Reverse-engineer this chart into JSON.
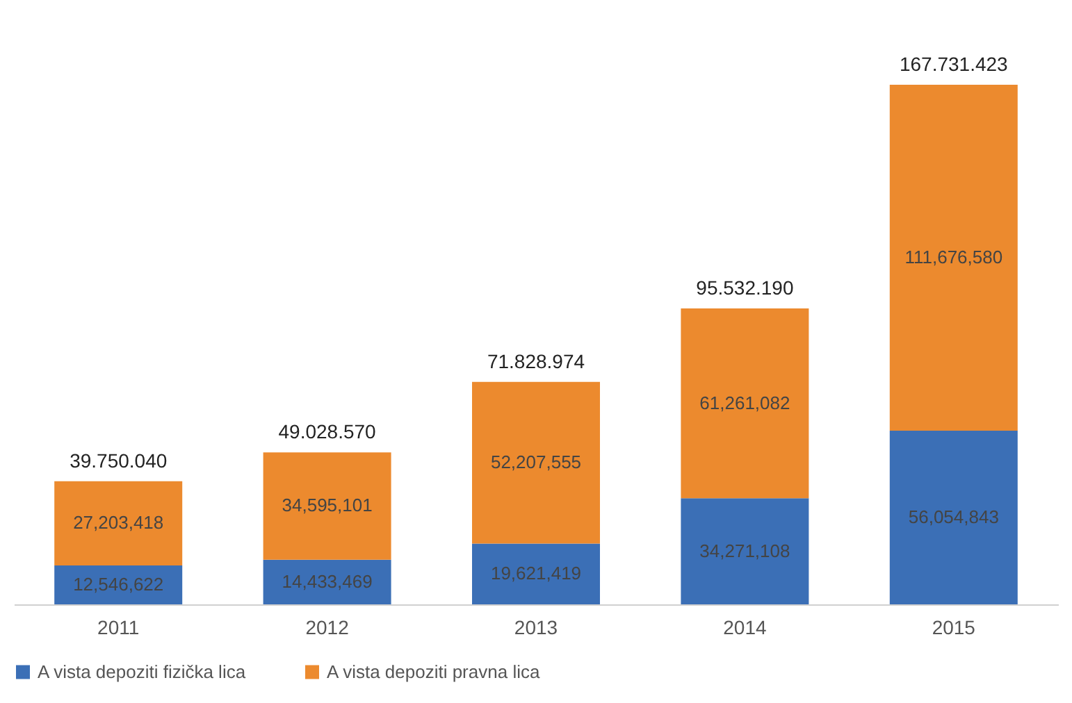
{
  "chart_data": {
    "type": "bar",
    "stacked": true,
    "categories": [
      "2011",
      "2012",
      "2013",
      "2014",
      "2015"
    ],
    "series": [
      {
        "name": "A vista depoziti fizička lica",
        "color": "#3b6fb6",
        "values": [
          12546622,
          14433469,
          19621419,
          34271108,
          56054843
        ],
        "value_labels": [
          "12,546,622",
          "14,433,469",
          "19,621,419",
          "34,271,108",
          "56,054,843"
        ]
      },
      {
        "name": "A vista depoziti pravna lica",
        "color": "#ec8a2e",
        "values": [
          27203418,
          34595101,
          52207555,
          61261082,
          111676580
        ],
        "value_labels": [
          "27,203,418",
          "34,595,101",
          "52,207,555",
          "61,261,082",
          "111,676,580"
        ]
      }
    ],
    "totals": [
      "39.750.040",
      "49.028.570",
      "71.828.974",
      "95.532.190",
      "167.731.423"
    ],
    "legend": "bottom",
    "grid": false
  }
}
